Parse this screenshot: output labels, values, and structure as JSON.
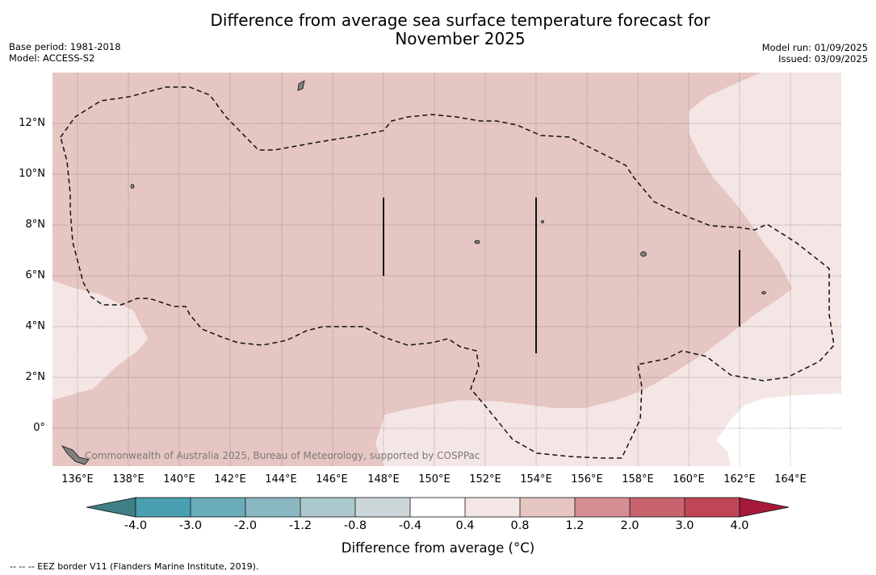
{
  "header": {
    "title_line1": "Difference from average sea surface temperature forecast for",
    "title_line2": "November 2025",
    "base_period": "Base period: 1981-2018",
    "model": "Model: ACCESS-S2",
    "model_run": "Model run: 01/09/2025",
    "issued": "Issued: 03/09/2025"
  },
  "map": {
    "lat_labels": [
      "12°N",
      "10°N",
      "8°N",
      "6°N",
      "4°N",
      "2°N",
      "0°"
    ],
    "lon_labels": [
      "136°E",
      "138°E",
      "140°E",
      "142°E",
      "144°E",
      "146°E",
      "148°E",
      "150°E",
      "152°E",
      "154°E",
      "156°E",
      "158°E",
      "160°E",
      "162°E",
      "164°E"
    ],
    "copyright": "Commonwealth of Australia 2025, Bureau of Meteorology, supported by COSPPac",
    "colors": {
      "anomaly_0_4_to_0_8": "#f4e6e4",
      "anomaly_0_8_to_1_2": "#e6c6c2",
      "land": "#808080",
      "gridline": "#555555"
    }
  },
  "colorbar": {
    "ticks": [
      "-4.0",
      "-3.0",
      "-2.0",
      "-1.2",
      "-0.8",
      "-0.4",
      "0.4",
      "0.8",
      "1.2",
      "2.0",
      "3.0",
      "4.0"
    ],
    "colors": [
      "#3f7f86",
      "#4aa0b1",
      "#6aacb9",
      "#8ab8c2",
      "#abc8cc",
      "#cdd6d8",
      "#ffffff",
      "#f4e6e4",
      "#e6c6c2",
      "#d58e94",
      "#c8646e",
      "#be4657",
      "#a8183a"
    ],
    "label": "Difference from average (°C)",
    "footnote": "--  --  -- EEZ border V11 (Flanders Marine Institute, 2019)."
  }
}
